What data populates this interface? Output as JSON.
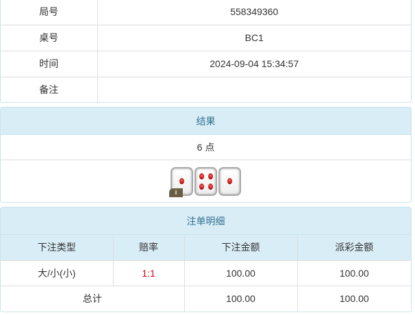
{
  "info": [
    {
      "label": "局号",
      "value": "558349360"
    },
    {
      "label": "桌号",
      "value": "BC1"
    },
    {
      "label": "时间",
      "value": "2024-09-04 15:34:57"
    },
    {
      "label": "备注",
      "value": ""
    }
  ],
  "result": {
    "title": "结果",
    "points": "6 点",
    "dice": [
      1,
      4,
      1
    ],
    "info_badge": "i"
  },
  "bets": {
    "title": "注单明细",
    "columns": [
      "下注类型",
      "赔率",
      "下注金额",
      "派彩金额"
    ],
    "rows": [
      {
        "type": "大/小(小)",
        "odds": "1:1",
        "amount": "100.00",
        "payout": "100.00"
      }
    ],
    "total": {
      "label": "总计",
      "amount": "100.00",
      "payout": "100.00"
    },
    "odds_color": "#d9000d"
  }
}
